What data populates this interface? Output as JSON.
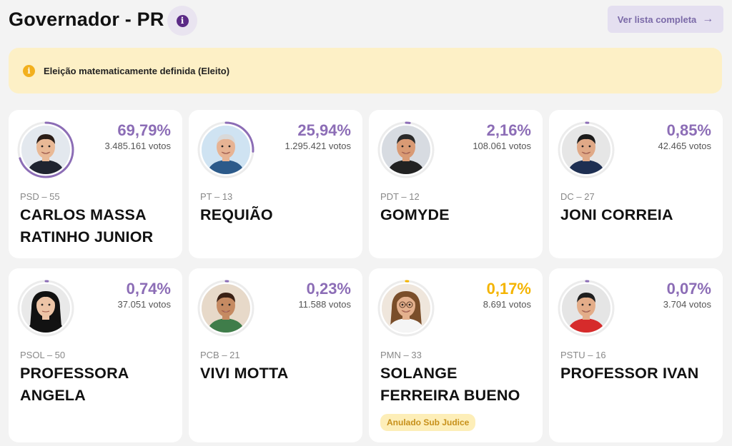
{
  "header": {
    "title": "Governador - PR",
    "info_icon": "info-icon",
    "full_list_label": "Ver lista completa",
    "full_list_arrow": "→"
  },
  "alert": {
    "icon": "info-icon",
    "text": "Eleição matematicamente definida (Eleito)"
  },
  "colors": {
    "accent": "#8c6db6",
    "highlight": "#f4b400",
    "alert_bg": "#fdf0c6"
  },
  "candidates": [
    {
      "party": "PSD – 55",
      "name": "CARLOS MASSA RATINHO JUNIOR",
      "percent": "69,79%",
      "percent_value": 69.79,
      "votes": "3.485.161 votos"
    },
    {
      "party": "PT – 13",
      "name": "REQUIÃO",
      "percent": "25,94%",
      "percent_value": 25.94,
      "votes": "1.295.421 votos"
    },
    {
      "party": "PDT – 12",
      "name": "GOMYDE",
      "percent": "2,16%",
      "percent_value": 2.16,
      "votes": "108.061 votos"
    },
    {
      "party": "DC – 27",
      "name": "JONI CORREIA",
      "percent": "0,85%",
      "percent_value": 0.85,
      "votes": "42.465 votos"
    },
    {
      "party": "PSOL – 50",
      "name": "PROFESSORA ANGELA",
      "percent": "0,74%",
      "percent_value": 0.74,
      "votes": "37.051 votos"
    },
    {
      "party": "PCB – 21",
      "name": "VIVI MOTTA",
      "percent": "0,23%",
      "percent_value": 0.23,
      "votes": "11.588 votos"
    },
    {
      "party": "PMN – 33",
      "name": "SOLANGE FERREIRA BUENO",
      "percent": "0,17%",
      "percent_value": 0.17,
      "votes": "8.691 votos",
      "badge": "Anulado Sub Judice"
    },
    {
      "party": "PSTU – 16",
      "name": "PROFESSOR IVAN",
      "percent": "0,07%",
      "percent_value": 0.07,
      "votes": "3.704 votos"
    }
  ]
}
